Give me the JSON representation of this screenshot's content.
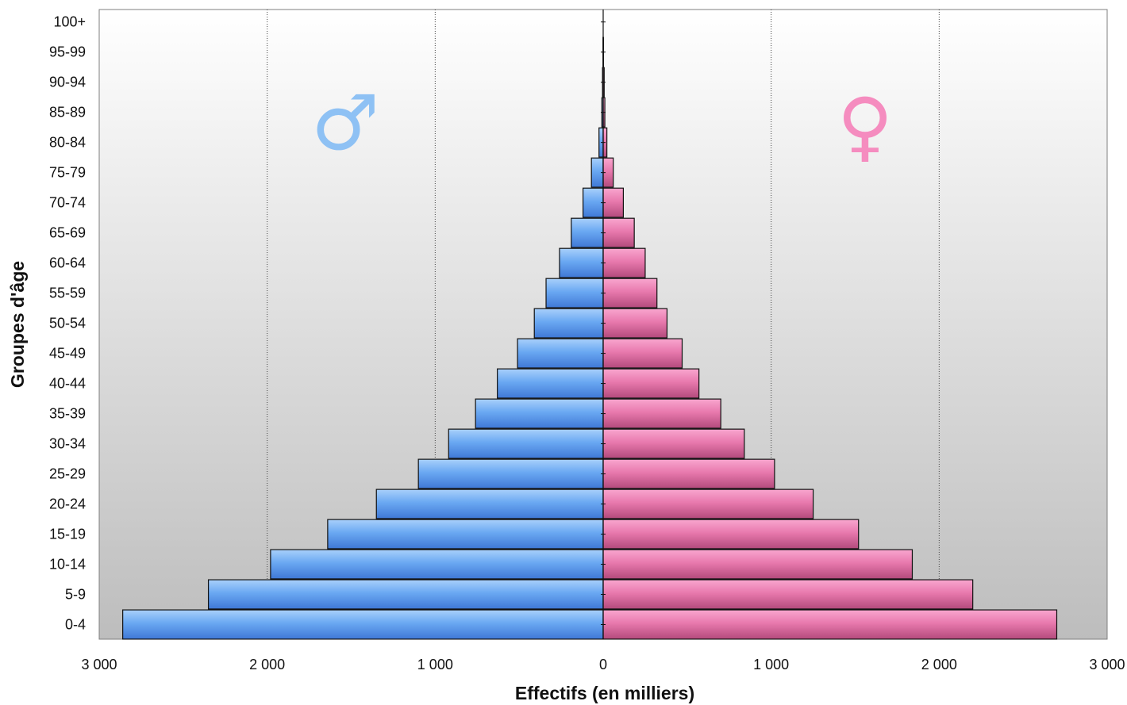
{
  "chart_data": {
    "type": "bar",
    "orientation": "horizontal",
    "layout": "population-pyramid",
    "categories": [
      "0-4",
      "5-9",
      "10-14",
      "15-19",
      "20-24",
      "25-29",
      "30-34",
      "35-39",
      "40-44",
      "45-49",
      "50-54",
      "55-59",
      "60-64",
      "65-69",
      "70-74",
      "75-79",
      "80-84",
      "85-89",
      "90-94",
      "95-99",
      "100+"
    ],
    "series": [
      {
        "symbol": "♂",
        "side": "left",
        "color": "#5b9bf0",
        "values": [
          2860,
          2350,
          1980,
          1640,
          1350,
          1100,
          920,
          760,
          630,
          510,
          410,
          340,
          260,
          190,
          120,
          70,
          25,
          8,
          4,
          1,
          0
        ]
      },
      {
        "symbol": "♀",
        "side": "right",
        "color": "#e8609e",
        "values": [
          2700,
          2200,
          1840,
          1520,
          1250,
          1020,
          840,
          700,
          570,
          470,
          380,
          320,
          250,
          185,
          120,
          60,
          22,
          10,
          6,
          2,
          0
        ]
      }
    ],
    "xlabel": "Effectifs (en milliers)",
    "ylabel": "Groupes d'âge",
    "xlim": [
      -3000,
      3000
    ],
    "xticks": [
      -3000,
      -2000,
      -1000,
      0,
      1000,
      2000,
      3000
    ],
    "xtick_labels": [
      "3 000",
      "2 000",
      "1 000",
      "0",
      "1 000",
      "2 000",
      "3 000"
    ],
    "grid": "vertical-dotted",
    "legend": "symbols-in-plot",
    "symbol_colors": {
      "male": "#8ec1f4",
      "female": "#f58cbf"
    }
  }
}
